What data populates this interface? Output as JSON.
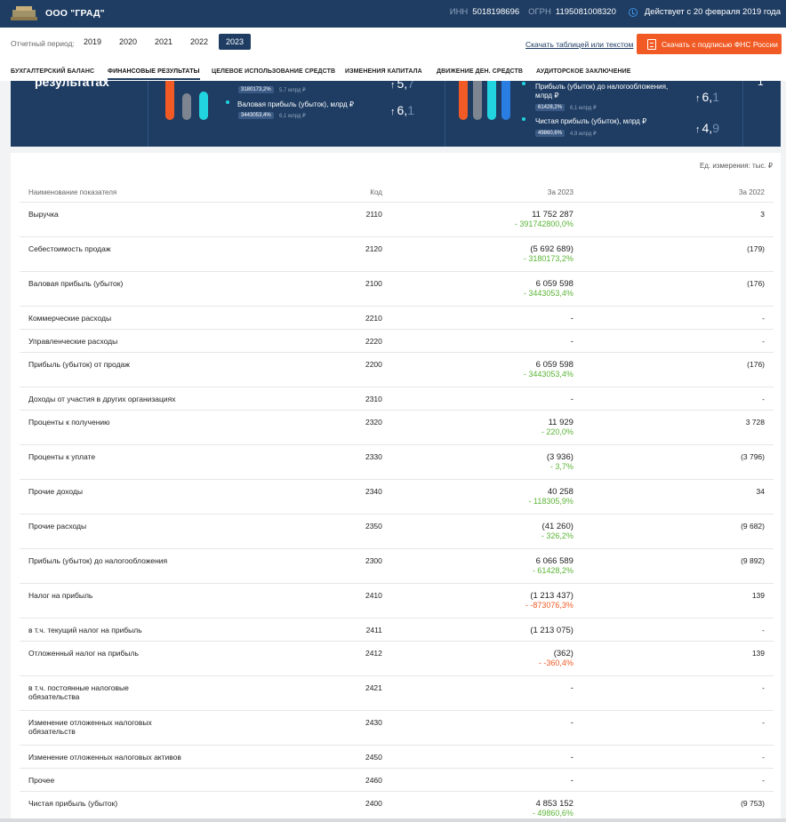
{
  "header": {
    "company": "ООО \"ГРАД\"",
    "inn_label": "ИНН",
    "inn": "5018198696",
    "ogrn_label": "ОГРН",
    "ogrn": "1195081008320",
    "status": "Действует с 20 февраля 2019 года"
  },
  "filters": {
    "period_label": "Отчетный период:",
    "years": [
      "2019",
      "2020",
      "2021",
      "2022",
      "2023"
    ],
    "active_year": "2023",
    "download_link": "Скачать таблицей или текстом",
    "download_button": "Скачать с подписью ФНС России"
  },
  "tabs": [
    "Бухгалтерский баланс",
    "Финансовые результаты",
    "Целевое использование средств",
    "Изменения капитала",
    "Движение ден. средств",
    "Аудиторское заключение"
  ],
  "active_tab": "Финансовые результаты",
  "hero": {
    "title": "результатах",
    "card1": {
      "badge_top": "3180173,2%",
      "sub_top": "5,7 млрд ₽",
      "big_top_main": "5,",
      "big_top_dim": "7",
      "label2": "Валовая прибыль (убыток), млрд ₽",
      "badge2": "3443053,4%",
      "sub2": "6,1 млрд ₽",
      "big2_main": "6,",
      "big2_dim": "1"
    },
    "card2": {
      "label1": "Прибыль (убыток) до налогообложения, млрд ₽",
      "badge1": "61428,2%",
      "sub1": "6,1 млрд ₽",
      "big1_main": "6,",
      "big1_dim": "1",
      "label2": "Чистая прибыль (убыток), млрд ₽",
      "badge2": "49860,6%",
      "sub2": "4,9 млрд ₽",
      "big2_main": "4,",
      "big2_dim": "9"
    },
    "card3_value": "1"
  },
  "table": {
    "units": "Ед. измерения: тыс. ₽",
    "headers": {
      "name": "Наименование показателя",
      "code": "Код",
      "current": "За 2023",
      "previous": "За 2022"
    },
    "rows": [
      {
        "name": "Выручка",
        "code": "2110",
        "current": "11 752 287",
        "change": "391742800,0%",
        "neg": false,
        "previous": "3"
      },
      {
        "name": "Себестоимость продаж",
        "code": "2120",
        "current": "(5 692 689)",
        "change": "3180173,2%",
        "neg": false,
        "previous": "(179)"
      },
      {
        "name": "Валовая прибыль (убыток)",
        "code": "2100",
        "current": "6 059 598",
        "change": "3443053,4%",
        "neg": false,
        "previous": "(176)"
      },
      {
        "name": "Коммерческие расходы",
        "code": "2210",
        "current": "-",
        "change": "",
        "neg": false,
        "previous": "-"
      },
      {
        "name": "Управленческие расходы",
        "code": "2220",
        "current": "-",
        "change": "",
        "neg": false,
        "previous": "-"
      },
      {
        "name": "Прибыль (убыток) от продаж",
        "code": "2200",
        "current": "6 059 598",
        "change": "3443053,4%",
        "neg": false,
        "previous": "(176)"
      },
      {
        "name": "Доходы от участия в других организациях",
        "code": "2310",
        "current": "-",
        "change": "",
        "neg": false,
        "previous": "-"
      },
      {
        "name": "Проценты к получению",
        "code": "2320",
        "current": "11 929",
        "change": "220,0%",
        "neg": false,
        "previous": "3 728"
      },
      {
        "name": "Проценты к уплате",
        "code": "2330",
        "current": "(3 936)",
        "change": "3,7%",
        "neg": false,
        "previous": "(3 796)"
      },
      {
        "name": "Прочие доходы",
        "code": "2340",
        "current": "40 258",
        "change": "118305,9%",
        "neg": false,
        "previous": "34"
      },
      {
        "name": "Прочие расходы",
        "code": "2350",
        "current": "(41 260)",
        "change": "326,2%",
        "neg": false,
        "previous": "(9 682)"
      },
      {
        "name": "Прибыль (убыток) до налогообложения",
        "code": "2300",
        "current": "6 066 589",
        "change": "61428,2%",
        "neg": false,
        "previous": "(9 892)"
      },
      {
        "name": "Налог на прибыль",
        "code": "2410",
        "current": "(1 213 437)",
        "change": "-873076,3%",
        "neg": true,
        "previous": "139"
      },
      {
        "name": "в т.ч. текущий налог на прибыль",
        "code": "2411",
        "current": "(1 213 075)",
        "change": "",
        "neg": false,
        "previous": "-"
      },
      {
        "name": "Отложенный налог на прибыль",
        "code": "2412",
        "current": "(362)",
        "change": "-360,4%",
        "neg": true,
        "previous": "139"
      },
      {
        "name": "в т.ч. постоянные налоговые обязательства",
        "code": "2421",
        "current": "-",
        "change": "",
        "neg": false,
        "previous": "-"
      },
      {
        "name": "Изменение отложенных налоговых обязательств",
        "code": "2430",
        "current": "-",
        "change": "",
        "neg": false,
        "previous": "-"
      },
      {
        "name": "Изменение отложенных налоговых активов",
        "code": "2450",
        "current": "-",
        "change": "",
        "neg": false,
        "previous": "-"
      },
      {
        "name": "Прочее",
        "code": "2460",
        "current": "-",
        "change": "",
        "neg": false,
        "previous": "-"
      },
      {
        "name": "Чистая прибыль (убыток)",
        "code": "2400",
        "current": "4 853 152",
        "change": "49860,6%",
        "neg": false,
        "previous": "(9 753)"
      }
    ]
  },
  "colors": {
    "navy": "#1f3d63",
    "orange": "#f15a24",
    "green": "#5bb536",
    "cyan": "#21d4e0",
    "grey_bar": "#7d8590",
    "blue_bar": "#2a7de1"
  }
}
